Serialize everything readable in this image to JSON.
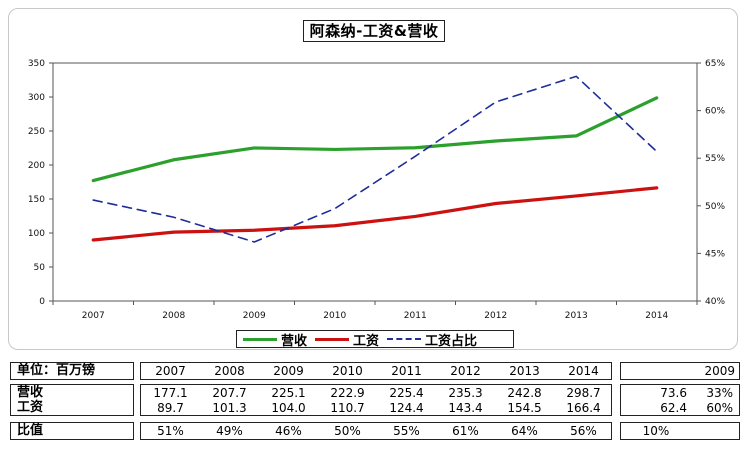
{
  "chart_data": {
    "type": "line",
    "title": "阿森纳-工资&营收",
    "categories": [
      "2007",
      "2008",
      "2009",
      "2010",
      "2011",
      "2012",
      "2013",
      "2014"
    ],
    "series": [
      {
        "name": "营收",
        "axis": "left",
        "color": "#2ca02c",
        "style": "solid",
        "values": [
          177.1,
          207.7,
          225.1,
          222.9,
          225.4,
          235.3,
          242.8,
          298.7
        ]
      },
      {
        "name": "工资",
        "axis": "left",
        "color": "#cc1111",
        "style": "solid",
        "values": [
          89.7,
          101.3,
          104.0,
          110.7,
          124.4,
          143.4,
          154.5,
          166.4
        ]
      },
      {
        "name": "工资占比",
        "axis": "right",
        "color": "#1f2d9a",
        "style": "dashed",
        "values": [
          50.6,
          48.8,
          46.2,
          49.7,
          55.2,
          60.9,
          63.6,
          55.7
        ]
      }
    ],
    "y_left": {
      "min": 0,
      "max": 350,
      "ticks": [
        "0",
        "50",
        "100",
        "150",
        "200",
        "250",
        "300",
        "350"
      ]
    },
    "y_right": {
      "min": 40,
      "max": 65,
      "ticks": [
        "40%",
        "45%",
        "50%",
        "55%",
        "60%",
        "65%"
      ]
    },
    "grid": false,
    "legend": "bottom"
  },
  "table": {
    "unit_label": "单位：百万镑",
    "years": [
      "2007",
      "2008",
      "2009",
      "2010",
      "2011",
      "2012",
      "2013",
      "2014"
    ],
    "revenue_label": "营收",
    "wage_label": "工资",
    "ratio_label": "比值",
    "revenue": [
      "177.1",
      "207.7",
      "225.1",
      "222.9",
      "225.4",
      "235.3",
      "242.8",
      "298.7"
    ],
    "wages": [
      "89.7",
      "101.3",
      "104.0",
      "110.7",
      "124.4",
      "143.4",
      "154.5",
      "166.4"
    ],
    "ratio": [
      "51%",
      "49%",
      "46%",
      "50%",
      "55%",
      "61%",
      "64%",
      "56%"
    ],
    "side_year": "2009",
    "side_revenue": "73.6",
    "side_revenue_pct": "33%",
    "side_wages": "62.4",
    "side_wages_pct": "60%",
    "side_ratio": "10%"
  }
}
